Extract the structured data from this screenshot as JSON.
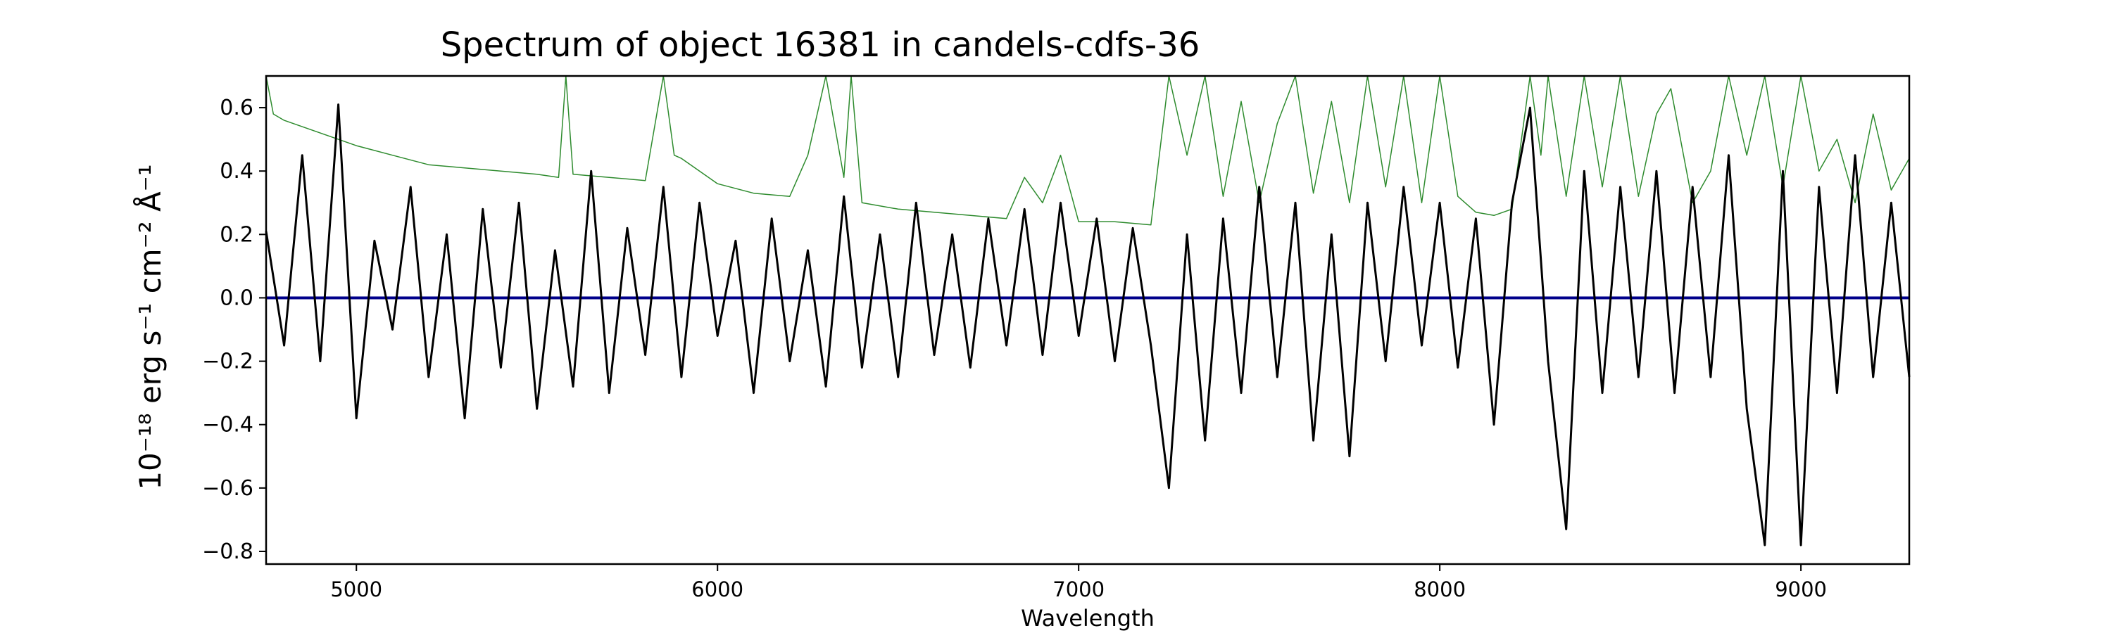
{
  "chart_data": {
    "type": "line",
    "title": "Spectrum of object 16381 in candels-cdfs-36",
    "xlabel": "Wavelength",
    "ylabel": "10⁻¹⁸ erg s⁻¹ cm⁻² Å⁻¹",
    "xlim": [
      4750,
      9300
    ],
    "ylim": [
      -0.84,
      0.7
    ],
    "xticks": [
      5000,
      6000,
      7000,
      8000,
      9000
    ],
    "yticks": [
      -0.8,
      -0.6,
      -0.4,
      -0.2,
      0.0,
      0.2,
      0.4,
      0.6
    ],
    "ytick_labels": [
      "−0.8",
      "−0.6",
      "−0.4",
      "−0.2",
      "0.0",
      "0.2",
      "0.4",
      "0.6"
    ],
    "grid": false,
    "series": [
      {
        "role": "flux",
        "color": "#000000",
        "x": [
          4750,
          4800,
          4850,
          4900,
          4950,
          5000,
          5050,
          5100,
          5150,
          5200,
          5250,
          5300,
          5350,
          5400,
          5450,
          5500,
          5550,
          5600,
          5650,
          5700,
          5750,
          5800,
          5850,
          5900,
          5950,
          6000,
          6050,
          6100,
          6150,
          6200,
          6250,
          6300,
          6350,
          6400,
          6450,
          6500,
          6550,
          6600,
          6650,
          6700,
          6750,
          6800,
          6850,
          6900,
          6950,
          7000,
          7050,
          7100,
          7150,
          7200,
          7250,
          7300,
          7350,
          7400,
          7450,
          7500,
          7550,
          7600,
          7650,
          7700,
          7750,
          7800,
          7850,
          7900,
          7950,
          8000,
          8050,
          8100,
          8150,
          8200,
          8250,
          8300,
          8350,
          8400,
          8450,
          8500,
          8550,
          8600,
          8650,
          8700,
          8750,
          8800,
          8850,
          8900,
          8950,
          9000,
          9050,
          9100,
          9150,
          9200,
          9250,
          9300
        ],
        "values": [
          0.21,
          -0.15,
          0.45,
          -0.2,
          0.61,
          -0.38,
          0.18,
          -0.1,
          0.35,
          -0.25,
          0.2,
          -0.38,
          0.28,
          -0.22,
          0.3,
          -0.35,
          0.15,
          -0.28,
          0.4,
          -0.3,
          0.22,
          -0.18,
          0.35,
          -0.25,
          0.3,
          -0.12,
          0.18,
          -0.3,
          0.25,
          -0.2,
          0.15,
          -0.28,
          0.32,
          -0.22,
          0.2,
          -0.25,
          0.3,
          -0.18,
          0.2,
          -0.22,
          0.25,
          -0.15,
          0.28,
          -0.18,
          0.3,
          -0.12,
          0.25,
          -0.2,
          0.22,
          -0.15,
          -0.6,
          0.2,
          -0.45,
          0.25,
          -0.3,
          0.35,
          -0.25,
          0.3,
          -0.45,
          0.2,
          -0.5,
          0.3,
          -0.2,
          0.35,
          -0.15,
          0.3,
          -0.22,
          0.25,
          -0.4,
          0.3,
          0.6,
          -0.2,
          -0.73,
          0.4,
          -0.3,
          0.35,
          -0.25,
          0.4,
          -0.3,
          0.35,
          -0.25,
          0.45,
          -0.35,
          -0.78,
          0.4,
          -0.78,
          0.35,
          -0.3,
          0.45,
          -0.25,
          0.3,
          -0.25
        ]
      },
      {
        "role": "error",
        "color": "#2e8b2e",
        "x": [
          4750,
          4770,
          4800,
          4900,
          5000,
          5100,
          5200,
          5300,
          5400,
          5500,
          5560,
          5580,
          5600,
          5700,
          5800,
          5850,
          5880,
          5900,
          5950,
          6000,
          6100,
          6200,
          6250,
          6300,
          6350,
          6370,
          6400,
          6500,
          6600,
          6700,
          6800,
          6850,
          6900,
          6950,
          7000,
          7100,
          7200,
          7250,
          7300,
          7350,
          7400,
          7450,
          7500,
          7550,
          7600,
          7650,
          7700,
          7750,
          7800,
          7850,
          7900,
          7950,
          8000,
          8050,
          8100,
          8150,
          8200,
          8250,
          8280,
          8300,
          8350,
          8400,
          8450,
          8500,
          8550,
          8600,
          8640,
          8700,
          8750,
          8800,
          8850,
          8900,
          8950,
          9000,
          9050,
          9100,
          9150,
          9200,
          9250,
          9300
        ],
        "values": [
          0.7,
          0.58,
          0.56,
          0.52,
          0.48,
          0.45,
          0.42,
          0.41,
          0.4,
          0.39,
          0.38,
          0.7,
          0.39,
          0.38,
          0.37,
          0.7,
          0.45,
          0.44,
          0.4,
          0.36,
          0.33,
          0.32,
          0.45,
          0.7,
          0.38,
          0.7,
          0.3,
          0.28,
          0.27,
          0.26,
          0.25,
          0.38,
          0.3,
          0.45,
          0.24,
          0.24,
          0.23,
          0.7,
          0.45,
          0.7,
          0.32,
          0.62,
          0.3,
          0.55,
          0.7,
          0.33,
          0.62,
          0.3,
          0.7,
          0.35,
          0.7,
          0.3,
          0.7,
          0.32,
          0.27,
          0.26,
          0.28,
          0.7,
          0.45,
          0.7,
          0.32,
          0.7,
          0.35,
          0.7,
          0.32,
          0.58,
          0.66,
          0.3,
          0.4,
          0.7,
          0.45,
          0.7,
          0.35,
          0.7,
          0.4,
          0.5,
          0.3,
          0.58,
          0.34,
          0.44
        ]
      },
      {
        "role": "model",
        "color": "#00008b",
        "x": [
          4750,
          9300
        ],
        "values": [
          0.0,
          0.0
        ]
      }
    ]
  }
}
